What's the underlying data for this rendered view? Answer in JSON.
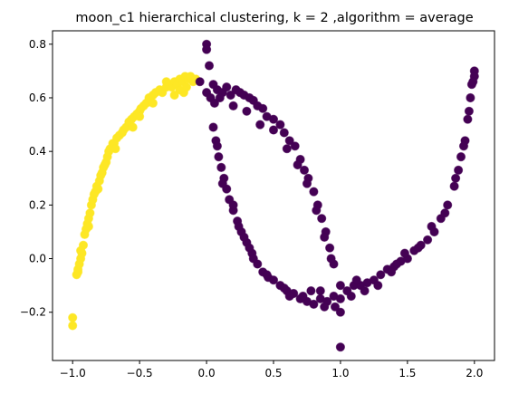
{
  "chart_data": {
    "type": "scatter",
    "title": "moon_c1 hierarchical clustering, k = 2 ,algorithm = average",
    "xlabel": "",
    "ylabel": "",
    "xlim": [
      -1.15,
      2.15
    ],
    "ylim": [
      -0.38,
      0.85
    ],
    "grid": false,
    "x_ticks": [
      {
        "value": -1.0,
        "label": "−1.0"
      },
      {
        "value": -0.5,
        "label": "−0.5"
      },
      {
        "value": 0.0,
        "label": "0.0"
      },
      {
        "value": 0.5,
        "label": "0.5"
      },
      {
        "value": 1.0,
        "label": "1.0"
      },
      {
        "value": 1.5,
        "label": "1.5"
      },
      {
        "value": 2.0,
        "label": "2.0"
      }
    ],
    "y_ticks": [
      {
        "value": -0.2,
        "label": "−0.2"
      },
      {
        "value": 0.0,
        "label": "0.0"
      },
      {
        "value": 0.2,
        "label": "0.2"
      },
      {
        "value": 0.4,
        "label": "0.4"
      },
      {
        "value": 0.6,
        "label": "0.6"
      },
      {
        "value": 0.8,
        "label": "0.8"
      }
    ],
    "colors": {
      "cluster_0": "#fde725",
      "cluster_1": "#440154"
    },
    "series": [
      {
        "cluster": 0,
        "color": "#fde725",
        "points": [
          [
            -1.0,
            -0.22
          ],
          [
            -1.0,
            -0.25
          ],
          [
            -0.97,
            -0.06
          ],
          [
            -0.96,
            -0.04
          ],
          [
            -0.95,
            -0.02
          ],
          [
            -0.94,
            0.0
          ],
          [
            -0.93,
            0.02
          ],
          [
            -0.92,
            0.05
          ],
          [
            -0.91,
            0.09
          ],
          [
            -0.9,
            0.11
          ],
          [
            -0.89,
            0.13
          ],
          [
            -0.88,
            0.15
          ],
          [
            -0.87,
            0.17
          ],
          [
            -0.86,
            0.2
          ],
          [
            -0.85,
            0.22
          ],
          [
            -0.84,
            0.24
          ],
          [
            -0.83,
            0.25
          ],
          [
            -0.82,
            0.27
          ],
          [
            -0.8,
            0.29
          ],
          [
            -0.79,
            0.31
          ],
          [
            -0.78,
            0.32
          ],
          [
            -0.77,
            0.34
          ],
          [
            -0.75,
            0.36
          ],
          [
            -0.74,
            0.38
          ],
          [
            -0.73,
            0.4
          ],
          [
            -0.72,
            0.41
          ],
          [
            -0.7,
            0.43
          ],
          [
            -0.69,
            0.43
          ],
          [
            -0.67,
            0.45
          ],
          [
            -0.65,
            0.46
          ],
          [
            -0.63,
            0.47
          ],
          [
            -0.62,
            0.48
          ],
          [
            -0.6,
            0.49
          ],
          [
            -0.58,
            0.51
          ],
          [
            -0.56,
            0.52
          ],
          [
            -0.54,
            0.53
          ],
          [
            -0.52,
            0.54
          ],
          [
            -0.5,
            0.55
          ],
          [
            -0.49,
            0.56
          ],
          [
            -0.47,
            0.57
          ],
          [
            -0.45,
            0.58
          ],
          [
            -0.43,
            0.6
          ],
          [
            -0.4,
            0.61
          ],
          [
            -0.38,
            0.62
          ],
          [
            -0.35,
            0.63
          ],
          [
            -0.33,
            0.62
          ],
          [
            -0.3,
            0.64
          ],
          [
            -0.28,
            0.65
          ],
          [
            -0.26,
            0.64
          ],
          [
            -0.24,
            0.66
          ],
          [
            -0.22,
            0.65
          ],
          [
            -0.2,
            0.67
          ],
          [
            -0.18,
            0.66
          ],
          [
            -0.16,
            0.68
          ],
          [
            -0.14,
            0.67
          ],
          [
            -0.12,
            0.68
          ],
          [
            -0.1,
            0.66
          ],
          [
            -0.08,
            0.67
          ],
          [
            -0.17,
            0.62
          ],
          [
            -0.2,
            0.63
          ],
          [
            -0.15,
            0.64
          ],
          [
            -0.24,
            0.61
          ],
          [
            -0.4,
            0.58
          ],
          [
            -0.55,
            0.49
          ],
          [
            -0.68,
            0.41
          ],
          [
            -0.76,
            0.35
          ],
          [
            -0.81,
            0.26
          ],
          [
            -0.88,
            0.12
          ],
          [
            -0.94,
            0.03
          ],
          [
            -0.96,
            -0.05
          ],
          [
            -0.3,
            0.66
          ],
          [
            -0.5,
            0.53
          ]
        ]
      },
      {
        "cluster": 1,
        "color": "#440154",
        "points": [
          [
            0.0,
            0.8
          ],
          [
            0.0,
            0.78
          ],
          [
            -0.05,
            0.66
          ],
          [
            0.02,
            0.72
          ],
          [
            0.05,
            0.65
          ],
          [
            0.08,
            0.63
          ],
          [
            0.12,
            0.62
          ],
          [
            0.15,
            0.64
          ],
          [
            0.18,
            0.61
          ],
          [
            0.22,
            0.63
          ],
          [
            0.25,
            0.62
          ],
          [
            0.28,
            0.61
          ],
          [
            0.32,
            0.6
          ],
          [
            0.35,
            0.59
          ],
          [
            0.38,
            0.57
          ],
          [
            0.42,
            0.56
          ],
          [
            0.45,
            0.53
          ],
          [
            0.5,
            0.52
          ],
          [
            0.55,
            0.5
          ],
          [
            0.58,
            0.47
          ],
          [
            0.62,
            0.44
          ],
          [
            0.66,
            0.42
          ],
          [
            0.7,
            0.37
          ],
          [
            0.73,
            0.33
          ],
          [
            0.76,
            0.3
          ],
          [
            0.8,
            0.25
          ],
          [
            0.83,
            0.2
          ],
          [
            0.86,
            0.15
          ],
          [
            0.89,
            0.1
          ],
          [
            0.92,
            0.04
          ],
          [
            0.95,
            -0.02
          ],
          [
            1.0,
            -0.1
          ],
          [
            1.0,
            -0.33
          ],
          [
            1.0,
            -0.2
          ],
          [
            0.0,
            0.62
          ],
          [
            0.03,
            0.6
          ],
          [
            0.06,
            0.58
          ],
          [
            0.1,
            0.6
          ],
          [
            0.2,
            0.57
          ],
          [
            0.3,
            0.55
          ],
          [
            0.4,
            0.5
          ],
          [
            0.5,
            0.48
          ],
          [
            0.6,
            0.41
          ],
          [
            0.68,
            0.35
          ],
          [
            0.75,
            0.28
          ],
          [
            0.82,
            0.18
          ],
          [
            0.88,
            0.08
          ],
          [
            0.93,
            -0.0
          ],
          [
            0.05,
            0.49
          ],
          [
            0.07,
            0.44
          ],
          [
            0.09,
            0.38
          ],
          [
            0.11,
            0.34
          ],
          [
            0.13,
            0.3
          ],
          [
            0.15,
            0.26
          ],
          [
            0.17,
            0.22
          ],
          [
            0.2,
            0.18
          ],
          [
            0.23,
            0.14
          ],
          [
            0.26,
            0.1
          ],
          [
            0.3,
            0.06
          ],
          [
            0.34,
            0.02
          ],
          [
            0.38,
            -0.02
          ],
          [
            0.42,
            -0.05
          ],
          [
            0.46,
            -0.07
          ],
          [
            0.5,
            -0.08
          ],
          [
            0.55,
            -0.1
          ],
          [
            0.6,
            -0.12
          ],
          [
            0.65,
            -0.13
          ],
          [
            0.7,
            -0.15
          ],
          [
            0.75,
            -0.16
          ],
          [
            0.8,
            -0.17
          ],
          [
            0.85,
            -0.15
          ],
          [
            0.9,
            -0.16
          ],
          [
            0.95,
            -0.14
          ],
          [
            1.0,
            -0.15
          ],
          [
            1.05,
            -0.12
          ],
          [
            1.1,
            -0.1
          ],
          [
            1.15,
            -0.1
          ],
          [
            1.2,
            -0.09
          ],
          [
            1.25,
            -0.08
          ],
          [
            1.3,
            -0.06
          ],
          [
            1.35,
            -0.04
          ],
          [
            1.4,
            -0.03
          ],
          [
            1.45,
            -0.01
          ],
          [
            1.5,
            0.0
          ],
          [
            1.55,
            0.03
          ],
          [
            1.6,
            0.05
          ],
          [
            1.65,
            0.07
          ],
          [
            1.7,
            0.1
          ],
          [
            1.75,
            0.15
          ],
          [
            1.8,
            0.2
          ],
          [
            1.85,
            0.27
          ],
          [
            1.88,
            0.33
          ],
          [
            1.9,
            0.38
          ],
          [
            1.93,
            0.44
          ],
          [
            1.95,
            0.52
          ],
          [
            1.97,
            0.6
          ],
          [
            1.98,
            0.65
          ],
          [
            2.0,
            0.7
          ],
          [
            2.0,
            0.68
          ],
          [
            1.99,
            0.66
          ],
          [
            0.08,
            0.42
          ],
          [
            0.12,
            0.28
          ],
          [
            0.2,
            0.2
          ],
          [
            0.28,
            0.08
          ],
          [
            0.35,
            0.0
          ],
          [
            0.45,
            -0.06
          ],
          [
            0.58,
            -0.11
          ],
          [
            0.72,
            -0.14
          ],
          [
            0.78,
            -0.12
          ],
          [
            0.88,
            -0.18
          ],
          [
            0.96,
            -0.18
          ],
          [
            1.08,
            -0.14
          ],
          [
            1.18,
            -0.12
          ],
          [
            1.28,
            -0.1
          ],
          [
            1.38,
            -0.05
          ],
          [
            1.48,
            0.02
          ],
          [
            1.58,
            0.04
          ],
          [
            1.68,
            0.12
          ],
          [
            1.78,
            0.17
          ],
          [
            1.86,
            0.3
          ],
          [
            1.92,
            0.42
          ],
          [
            1.96,
            0.55
          ],
          [
            0.24,
            0.12
          ],
          [
            0.32,
            0.04
          ],
          [
            0.62,
            -0.14
          ],
          [
            0.85,
            -0.12
          ],
          [
            1.12,
            -0.08
          ],
          [
            1.42,
            -0.02
          ]
        ]
      }
    ]
  }
}
